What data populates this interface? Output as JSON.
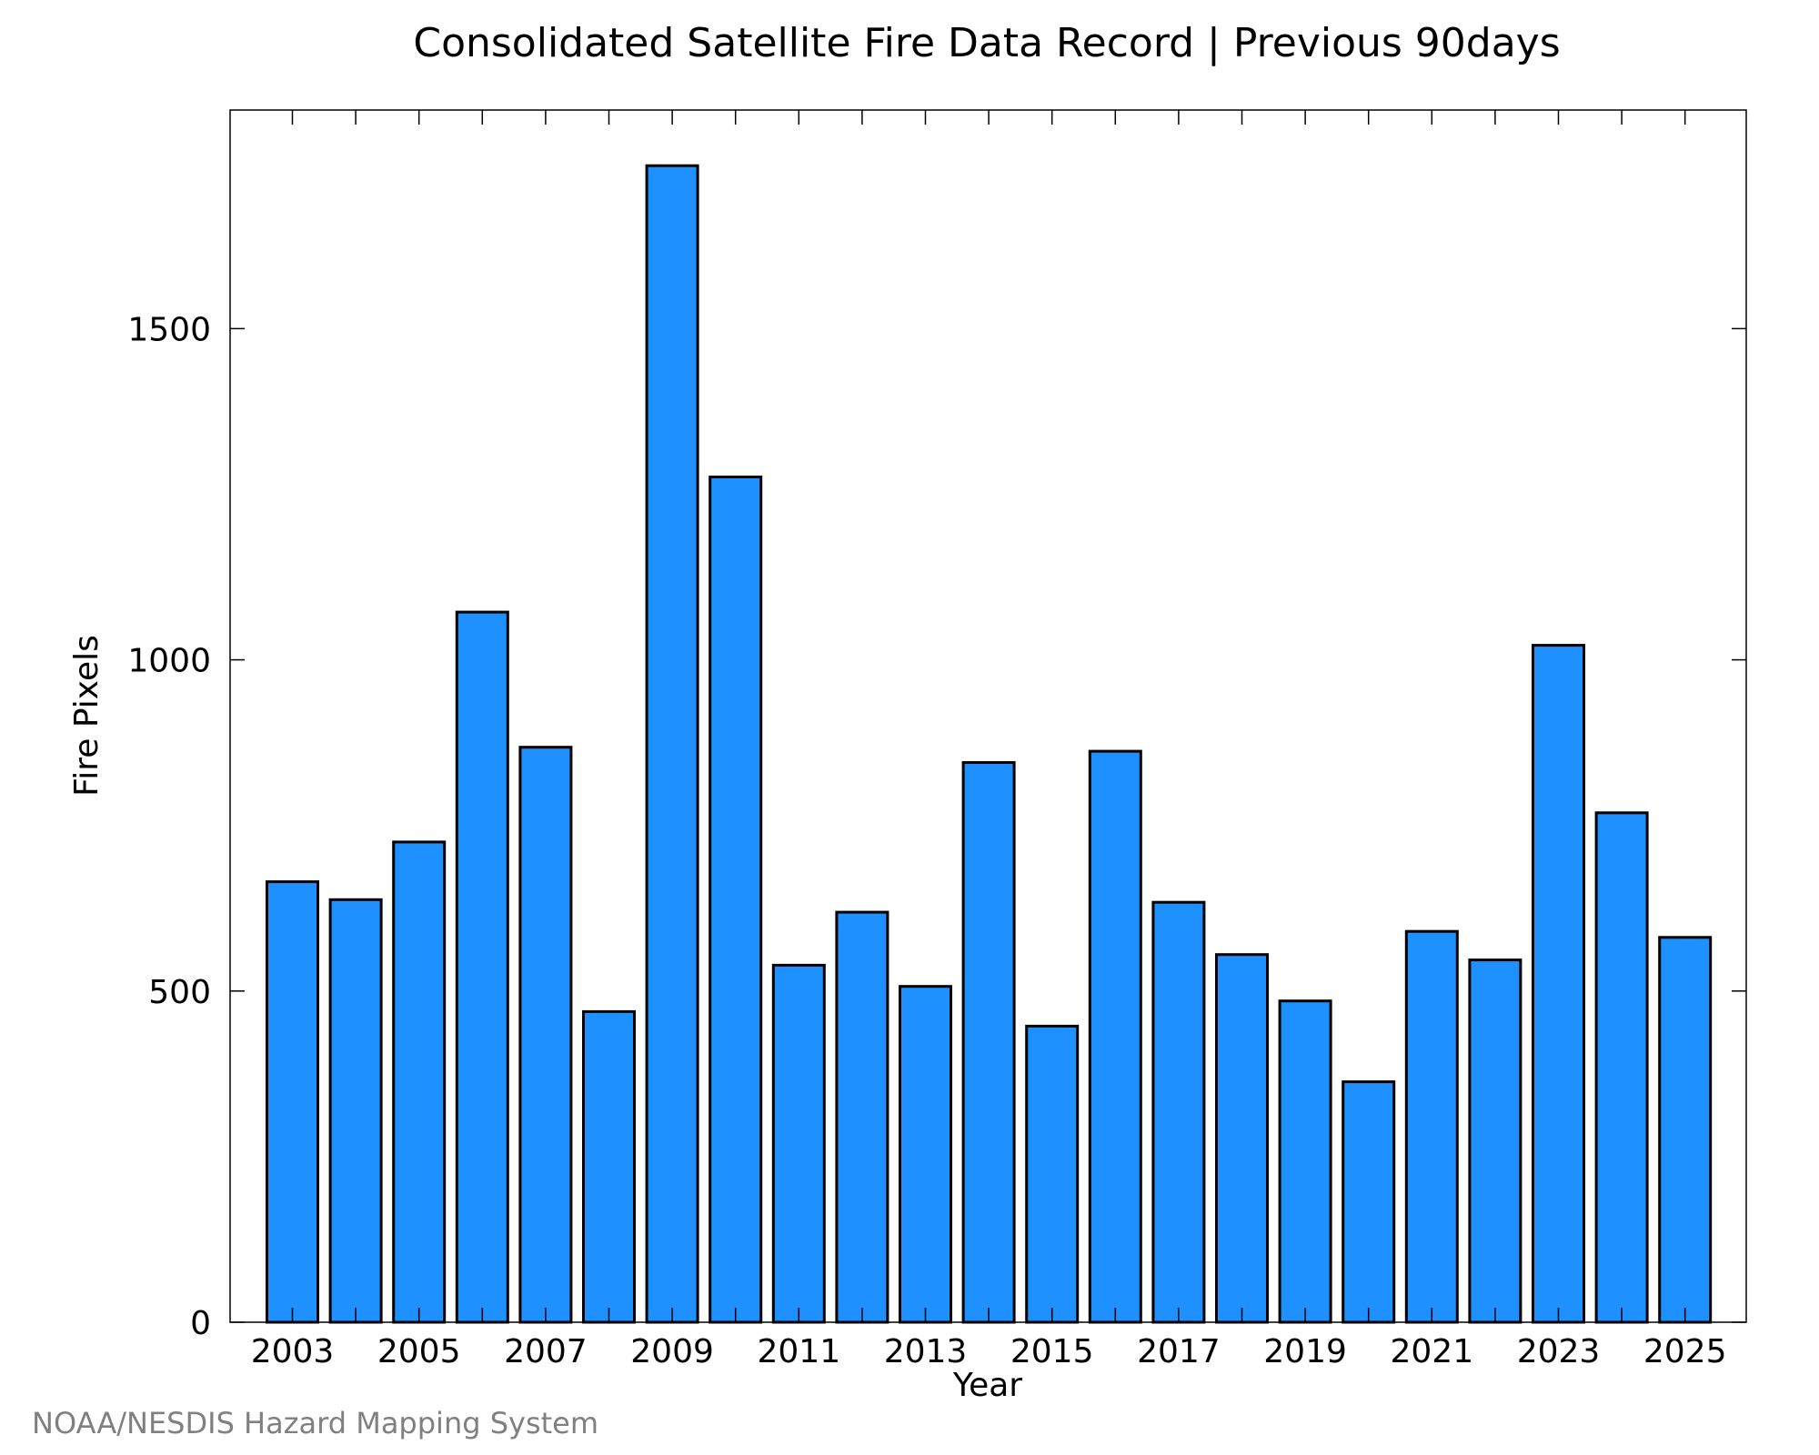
{
  "chart_data": {
    "type": "bar",
    "title": "Consolidated Satellite Fire Data Record | Previous 90days",
    "xlabel": "Year",
    "ylabel": "Fire Pixels",
    "categories": [
      "2003",
      "2004",
      "2005",
      "2006",
      "2007",
      "2008",
      "2009",
      "2010",
      "2011",
      "2012",
      "2013",
      "2014",
      "2015",
      "2016",
      "2017",
      "2018",
      "2019",
      "2020",
      "2021",
      "2022",
      "2023",
      "2024",
      "2025"
    ],
    "values": [
      665,
      638,
      725,
      1072,
      868,
      469,
      1746,
      1276,
      539,
      619,
      507,
      845,
      447,
      862,
      634,
      555,
      485,
      363,
      590,
      547,
      1022,
      769,
      581
    ],
    "x_tick_labels": [
      "2003",
      "2005",
      "2007",
      "2009",
      "2011",
      "2013",
      "2015",
      "2017",
      "2019",
      "2021",
      "2023",
      "2025"
    ],
    "y_tick_labels": [
      "0",
      "500",
      "1000",
      "1500"
    ],
    "y_ticks": [
      0,
      500,
      1000,
      1500
    ],
    "ylim": [
      0,
      1830
    ],
    "grid": false,
    "legend": "none",
    "colors": {
      "bar_fill": "#1e90ff",
      "bar_stroke": "#000000",
      "credit": "#808080"
    }
  },
  "credit": "NOAA/NESDIS Hazard Mapping System"
}
